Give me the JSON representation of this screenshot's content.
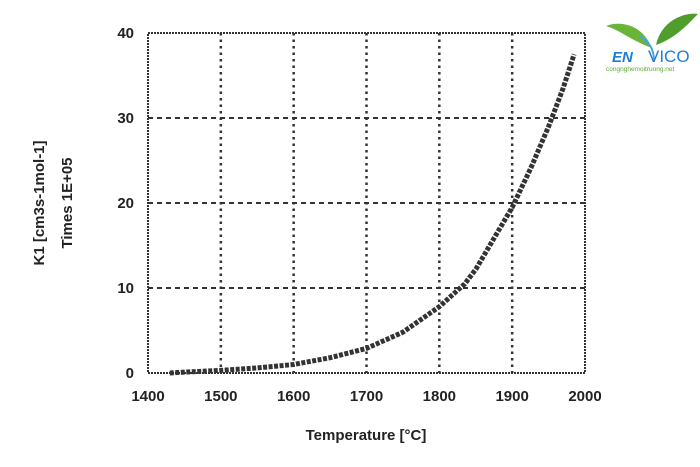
{
  "chart_data": {
    "type": "line",
    "title": "",
    "xlabel": "Temperature [°C]",
    "ylabel": "K1 [cm3s-1mol-1]",
    "ylabel2": "Times 1E+05",
    "xlim": [
      1400,
      2000
    ],
    "ylim": [
      0,
      40
    ],
    "xticks": [
      "1400",
      "1500",
      "1600",
      "1700",
      "1800",
      "1900",
      "2000"
    ],
    "yticks": [
      "0",
      "10",
      "20",
      "30",
      "40"
    ],
    "grid": true,
    "series": [
      {
        "name": "K1",
        "x": [
          1430,
          1450,
          1500,
          1550,
          1600,
          1650,
          1700,
          1750,
          1800,
          1835,
          1850,
          1900,
          1925,
          1950,
          1970,
          1985
        ],
        "y": [
          0,
          0.1,
          0.3,
          0.6,
          1.0,
          1.8,
          2.9,
          4.8,
          7.8,
          10.5,
          12.2,
          19.5,
          24,
          29,
          33.5,
          37.5
        ]
      }
    ],
    "line_color": "#333333"
  },
  "logo": {
    "text": "ENVICO",
    "subtext": "congnghemoitruong.net",
    "leaf_color": "#5aa832",
    "text_color": "#1e7fd0"
  }
}
